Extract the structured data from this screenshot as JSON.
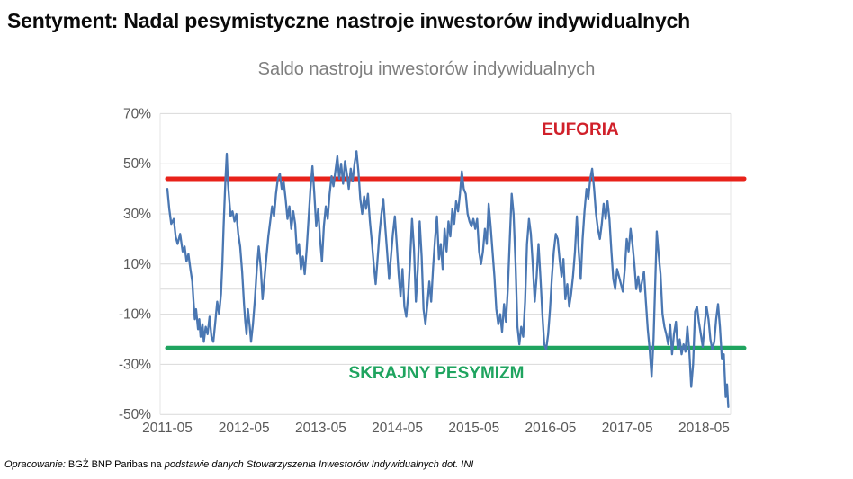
{
  "page_title": "Sentyment: Nadal pesymistyczne nastroje inwestorów indywidualnych",
  "footer": {
    "part1": "Opracowanie:",
    "part2": " BGŻ BNP Paribas na ",
    "part3": "podstawie danych Stowarzyszenia Inwestorów Indywidualnych dot. INI"
  },
  "chart_data": {
    "type": "line",
    "title": "Saldo nastroju inwestorów indywidualnych",
    "xlabel": "",
    "ylabel": "",
    "ylim": [
      -50,
      70
    ],
    "grid": "horizontal",
    "legend": "none",
    "y_ticks": [
      70,
      50,
      30,
      10,
      -10,
      -30,
      -50
    ],
    "y_tick_labels": [
      "70%",
      "50%",
      "30%",
      "10%",
      "-10%",
      "-30%",
      "-50%"
    ],
    "x_tick_labels": [
      "2011-05",
      "2012-05",
      "2013-05",
      "2014-05",
      "2015-05",
      "2016-05",
      "2017-05",
      "2018-05"
    ],
    "colors": {
      "grid": "#d9d9d9",
      "axis_text": "#595959",
      "series_blue": "#4a77b2",
      "euphoria_red": "#e8221a",
      "pessimism_green": "#1fa45f",
      "euphoria_text": "#d0202a",
      "pessimism_text": "#1fa45f"
    },
    "reference_lines": [
      {
        "id": "euphoria",
        "label": "EUFORIA",
        "value": 44,
        "color": "#e8221a",
        "label_color": "#d0202a"
      },
      {
        "id": "pessimism",
        "label": "SKRAJNY PESYMIZM",
        "value": -23.5,
        "color": "#1fa45f",
        "label_color": "#1fa45f"
      }
    ],
    "series": [
      {
        "name": "Saldo nastroju inwestorów indywidualnych",
        "color": "#4a77b2",
        "x_unit": "months_since_2011-05",
        "y_unit": "percent",
        "points": [
          [
            0,
            40
          ],
          [
            0.3,
            32
          ],
          [
            0.6,
            26
          ],
          [
            1,
            28
          ],
          [
            1.3,
            21
          ],
          [
            1.6,
            18
          ],
          [
            2,
            22
          ],
          [
            2.4,
            15
          ],
          [
            2.7,
            17
          ],
          [
            3,
            11
          ],
          [
            3.3,
            14
          ],
          [
            3.6,
            8
          ],
          [
            3.9,
            3
          ],
          [
            4.1,
            -5
          ],
          [
            4.3,
            -12
          ],
          [
            4.5,
            -8
          ],
          [
            4.8,
            -16
          ],
          [
            5,
            -12
          ],
          [
            5.2,
            -19
          ],
          [
            5.5,
            -14
          ],
          [
            5.7,
            -21
          ],
          [
            6,
            -15
          ],
          [
            6.3,
            -18
          ],
          [
            6.6,
            -11
          ],
          [
            6.9,
            -19
          ],
          [
            7.2,
            -21
          ],
          [
            7.5,
            -13
          ],
          [
            7.8,
            -5
          ],
          [
            8.1,
            -10
          ],
          [
            8.4,
            -2
          ],
          [
            8.6,
            10
          ],
          [
            8.8,
            25
          ],
          [
            9,
            38
          ],
          [
            9.1,
            44
          ],
          [
            9.3,
            54
          ],
          [
            9.5,
            42
          ],
          [
            9.7,
            35
          ],
          [
            9.9,
            29
          ],
          [
            10.2,
            31
          ],
          [
            10.5,
            27
          ],
          [
            10.8,
            30
          ],
          [
            11.1,
            22
          ],
          [
            11.4,
            17
          ],
          [
            11.7,
            7
          ],
          [
            12,
            -6
          ],
          [
            12.2,
            -13
          ],
          [
            12.4,
            -18
          ],
          [
            12.6,
            -8
          ],
          [
            12.9,
            -15
          ],
          [
            13.1,
            -21
          ],
          [
            13.4,
            -14
          ],
          [
            13.7,
            -4
          ],
          [
            14,
            8
          ],
          [
            14.3,
            17
          ],
          [
            14.6,
            9
          ],
          [
            14.9,
            -4
          ],
          [
            15.2,
            4
          ],
          [
            15.5,
            13
          ],
          [
            15.8,
            21
          ],
          [
            16.1,
            27
          ],
          [
            16.4,
            33
          ],
          [
            16.7,
            29
          ],
          [
            17,
            38
          ],
          [
            17.3,
            44
          ],
          [
            17.6,
            46
          ],
          [
            17.9,
            40
          ],
          [
            18.2,
            43
          ],
          [
            18.5,
            36
          ],
          [
            18.8,
            28
          ],
          [
            19.1,
            33
          ],
          [
            19.4,
            24
          ],
          [
            19.7,
            31
          ],
          [
            20,
            26
          ],
          [
            20.3,
            14
          ],
          [
            20.6,
            18
          ],
          [
            20.9,
            8
          ],
          [
            21.2,
            13
          ],
          [
            21.5,
            6
          ],
          [
            21.8,
            16
          ],
          [
            22.1,
            28
          ],
          [
            22.4,
            40
          ],
          [
            22.7,
            49
          ],
          [
            23,
            38
          ],
          [
            23.3,
            25
          ],
          [
            23.6,
            32
          ],
          [
            23.9,
            20
          ],
          [
            24.2,
            11
          ],
          [
            24.5,
            25
          ],
          [
            24.8,
            33
          ],
          [
            25.1,
            28
          ],
          [
            25.4,
            38
          ],
          [
            25.7,
            45
          ],
          [
            26,
            41
          ],
          [
            26.3,
            47
          ],
          [
            26.6,
            53
          ],
          [
            26.9,
            44
          ],
          [
            27.2,
            50
          ],
          [
            27.5,
            42
          ],
          [
            27.8,
            51
          ],
          [
            28.1,
            46
          ],
          [
            28.4,
            40
          ],
          [
            28.7,
            48
          ],
          [
            29,
            43
          ],
          [
            29.3,
            50
          ],
          [
            29.6,
            55
          ],
          [
            29.9,
            47
          ],
          [
            30.2,
            36
          ],
          [
            30.5,
            30
          ],
          [
            30.8,
            37
          ],
          [
            31.1,
            32
          ],
          [
            31.4,
            38
          ],
          [
            31.7,
            27
          ],
          [
            32,
            19
          ],
          [
            32.3,
            10
          ],
          [
            32.6,
            2
          ],
          [
            32.9,
            12
          ],
          [
            33.2,
            22
          ],
          [
            33.5,
            30
          ],
          [
            33.8,
            36
          ],
          [
            34.1,
            25
          ],
          [
            34.4,
            15
          ],
          [
            34.7,
            4
          ],
          [
            35,
            13
          ],
          [
            35.3,
            22
          ],
          [
            35.6,
            29
          ],
          [
            35.9,
            18
          ],
          [
            36.2,
            6
          ],
          [
            36.5,
            -3
          ],
          [
            36.8,
            8
          ],
          [
            37.1,
            -7
          ],
          [
            37.4,
            -11
          ],
          [
            37.7,
            -2
          ],
          [
            38,
            12
          ],
          [
            38.3,
            28
          ],
          [
            38.6,
            16
          ],
          [
            38.9,
            -5
          ],
          [
            39.2,
            8
          ],
          [
            39.5,
            27
          ],
          [
            39.8,
            13
          ],
          [
            40.1,
            -8
          ],
          [
            40.4,
            -14
          ],
          [
            40.7,
            -6
          ],
          [
            41,
            3
          ],
          [
            41.3,
            -5
          ],
          [
            41.6,
            9
          ],
          [
            41.9,
            20
          ],
          [
            42.2,
            29
          ],
          [
            42.5,
            12
          ],
          [
            42.8,
            18
          ],
          [
            43.1,
            8
          ],
          [
            43.4,
            24
          ],
          [
            43.7,
            15
          ],
          [
            44,
            27
          ],
          [
            44.3,
            21
          ],
          [
            44.6,
            32
          ],
          [
            44.9,
            26
          ],
          [
            45.2,
            35
          ],
          [
            45.5,
            31
          ],
          [
            45.8,
            38
          ],
          [
            46.1,
            47
          ],
          [
            46.4,
            40
          ],
          [
            46.7,
            38
          ],
          [
            47,
            30
          ],
          [
            47.3,
            27
          ],
          [
            47.6,
            25
          ],
          [
            47.9,
            28
          ],
          [
            48.2,
            24
          ],
          [
            48.5,
            28
          ],
          [
            48.8,
            15
          ],
          [
            49.1,
            10
          ],
          [
            49.4,
            15
          ],
          [
            49.7,
            24
          ],
          [
            50,
            18
          ],
          [
            50.3,
            34
          ],
          [
            50.6,
            25
          ],
          [
            50.9,
            15
          ],
          [
            51.2,
            5
          ],
          [
            51.5,
            -8
          ],
          [
            51.8,
            -14
          ],
          [
            52.1,
            -10
          ],
          [
            52.4,
            -17
          ],
          [
            52.7,
            -6
          ],
          [
            53,
            -13
          ],
          [
            53.3,
            0
          ],
          [
            53.6,
            20
          ],
          [
            53.9,
            38
          ],
          [
            54.2,
            30
          ],
          [
            54.5,
            10
          ],
          [
            54.8,
            -15
          ],
          [
            55.1,
            -22
          ],
          [
            55.4,
            -15
          ],
          [
            55.7,
            -19
          ],
          [
            56,
            -5
          ],
          [
            56.3,
            18
          ],
          [
            56.6,
            28
          ],
          [
            56.9,
            22
          ],
          [
            57.2,
            10
          ],
          [
            57.5,
            -5
          ],
          [
            57.8,
            5
          ],
          [
            58.1,
            18
          ],
          [
            58.4,
            5
          ],
          [
            58.7,
            -10
          ],
          [
            59,
            -22
          ],
          [
            59.3,
            -24
          ],
          [
            59.6,
            -18
          ],
          [
            59.9,
            -8
          ],
          [
            60.2,
            5
          ],
          [
            60.5,
            15
          ],
          [
            60.8,
            22
          ],
          [
            61.1,
            20
          ],
          [
            61.4,
            12
          ],
          [
            61.7,
            5
          ],
          [
            62,
            12
          ],
          [
            62.3,
            -4
          ],
          [
            62.6,
            2
          ],
          [
            62.9,
            -7
          ],
          [
            63.2,
            -2
          ],
          [
            63.5,
            5
          ],
          [
            63.8,
            15
          ],
          [
            64.1,
            29
          ],
          [
            64.4,
            15
          ],
          [
            64.7,
            4
          ],
          [
            65,
            20
          ],
          [
            65.3,
            31
          ],
          [
            65.6,
            40
          ],
          [
            65.9,
            36
          ],
          [
            66.2,
            44
          ],
          [
            66.5,
            48
          ],
          [
            66.8,
            40
          ],
          [
            67.1,
            30
          ],
          [
            67.4,
            24
          ],
          [
            67.7,
            20
          ],
          [
            68,
            26
          ],
          [
            68.3,
            34
          ],
          [
            68.6,
            28
          ],
          [
            68.9,
            35
          ],
          [
            69.2,
            28
          ],
          [
            69.5,
            15
          ],
          [
            69.8,
            4
          ],
          [
            70.1,
            0
          ],
          [
            70.4,
            8
          ],
          [
            70.7,
            5
          ],
          [
            71,
            2
          ],
          [
            71.3,
            -1
          ],
          [
            71.6,
            8
          ],
          [
            71.9,
            20
          ],
          [
            72.2,
            15
          ],
          [
            72.5,
            24
          ],
          [
            72.8,
            18
          ],
          [
            73.1,
            10
          ],
          [
            73.4,
            0
          ],
          [
            73.7,
            5
          ],
          [
            74,
            -1
          ],
          [
            74.3,
            3
          ],
          [
            74.6,
            7
          ],
          [
            74.9,
            -5
          ],
          [
            75.2,
            -16
          ],
          [
            75.5,
            -24
          ],
          [
            75.8,
            -35
          ],
          [
            76.1,
            -20
          ],
          [
            76.4,
            5
          ],
          [
            76.6,
            23
          ],
          [
            76.9,
            14
          ],
          [
            77.2,
            6
          ],
          [
            77.5,
            -10
          ],
          [
            77.8,
            -15
          ],
          [
            78.1,
            -18
          ],
          [
            78.4,
            -22
          ],
          [
            78.7,
            -14
          ],
          [
            79,
            -26
          ],
          [
            79.3,
            -18
          ],
          [
            79.6,
            -13
          ],
          [
            79.9,
            -24
          ],
          [
            80.2,
            -20
          ],
          [
            80.5,
            -26
          ],
          [
            80.8,
            -22
          ],
          [
            81.1,
            -25
          ],
          [
            81.4,
            -15
          ],
          [
            81.7,
            -25
          ],
          [
            82,
            -39
          ],
          [
            82.3,
            -30
          ],
          [
            82.6,
            -9
          ],
          [
            82.9,
            -7
          ],
          [
            83.2,
            -13
          ],
          [
            83.5,
            -18
          ],
          [
            83.8,
            -23
          ],
          [
            84.1,
            -14
          ],
          [
            84.4,
            -7
          ],
          [
            84.7,
            -12
          ],
          [
            85,
            -20
          ],
          [
            85.3,
            -24
          ],
          [
            85.6,
            -21
          ],
          [
            85.9,
            -12
          ],
          [
            86.2,
            -6
          ],
          [
            86.5,
            -15
          ],
          [
            86.8,
            -28
          ],
          [
            87.1,
            -26
          ],
          [
            87.4,
            -43
          ],
          [
            87.6,
            -38
          ],
          [
            87.8,
            -47
          ]
        ]
      }
    ]
  }
}
